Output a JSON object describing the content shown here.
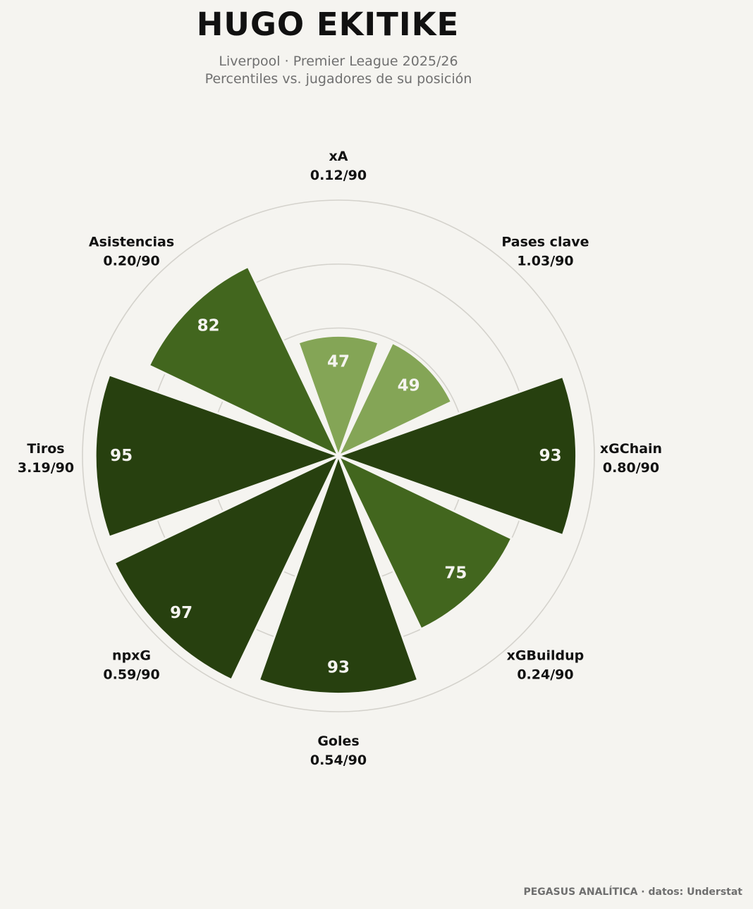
{
  "header": {
    "title": "HUGO EKITIKE",
    "subtitle_line1": "Liverpool · Premier League 2025/26",
    "subtitle_line2": "Percentiles vs. jugadores de su posición"
  },
  "footer": {
    "credit": "PEGASUS ANALÍTICA · datos: Understat"
  },
  "colors": {
    "background": "#f5f4f0",
    "bar_light": "#84a556",
    "bar_mid": "#42661e",
    "bar_dark": "#27400f",
    "grid": "#d4d2cc"
  },
  "chart_data": {
    "type": "polar-bar",
    "radial_range": [
      0,
      100
    ],
    "grid_rings": [
      50,
      75,
      100
    ],
    "categories": [
      {
        "name": "xA",
        "per90": "0.12/90",
        "percentile": 47
      },
      {
        "name": "Pases clave",
        "per90": "1.03/90",
        "percentile": 49
      },
      {
        "name": "xGChain",
        "per90": "0.80/90",
        "percentile": 93
      },
      {
        "name": "xGBuildup",
        "per90": "0.24/90",
        "percentile": 75
      },
      {
        "name": "Goles",
        "per90": "0.54/90",
        "percentile": 93
      },
      {
        "name": "npxG",
        "per90": "0.59/90",
        "percentile": 97
      },
      {
        "name": "Tiros",
        "per90": "3.19/90",
        "percentile": 95
      },
      {
        "name": "Asistencias",
        "per90": "0.20/90",
        "percentile": 82
      }
    ]
  }
}
